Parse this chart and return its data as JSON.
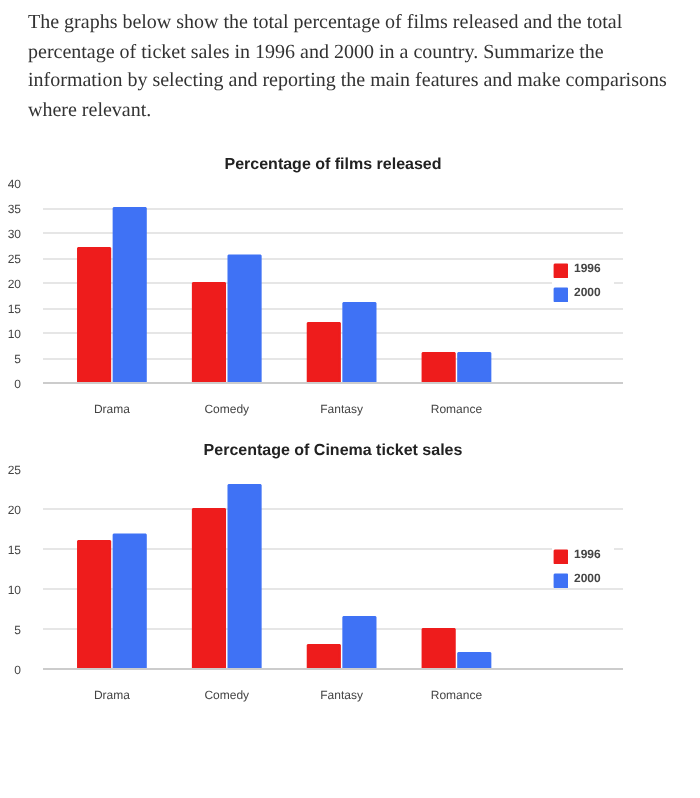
{
  "chart_data": [
    {
      "type": "bar",
      "title": "Percentage of films released",
      "annotations": [
        "The graphs below show the total percentage of films released and the total percentage of ticket sales in 1996 and 2000 in a country. Summarize the information by selecting and reporting the main features and make comparisons where relevant."
      ],
      "categories": [
        "Drama",
        "Comedy",
        "Fantasy",
        "Romance"
      ],
      "series": [
        {
          "name": "1996",
          "color": "#ee1c1c",
          "values": [
            27,
            20,
            12,
            6
          ]
        },
        {
          "name": "2000",
          "color": "#3f72f5",
          "values": [
            35,
            25.5,
            16,
            6
          ]
        }
      ],
      "ylim": [
        0,
        40
      ],
      "yticks": [
        0,
        5,
        10,
        15,
        20,
        25,
        30,
        35,
        40
      ],
      "grid": "y",
      "legend": "right"
    },
    {
      "type": "bar",
      "title": "Percentage of Cinema ticket sales",
      "categories": [
        "Drama",
        "Comedy",
        "Fantasy",
        "Romance"
      ],
      "series": [
        {
          "name": "1996",
          "color": "#ee1c1c",
          "values": [
            16,
            20,
            3,
            5
          ]
        },
        {
          "name": "2000",
          "color": "#3f72f5",
          "values": [
            16.8,
            23,
            6.5,
            2
          ]
        }
      ],
      "ylim": [
        0,
        25
      ],
      "yticks": [
        0,
        5,
        10,
        15,
        20,
        25
      ],
      "grid": "y",
      "legend": "right"
    }
  ]
}
